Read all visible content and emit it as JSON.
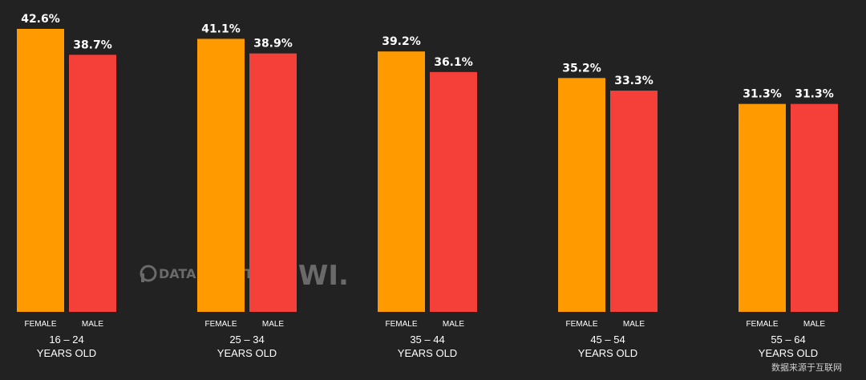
{
  "chart_data": {
    "type": "bar",
    "categories": [
      "16 – 24",
      "25 – 34",
      "35 – 44",
      "45 – 54",
      "55 – 64"
    ],
    "category_suffix": "YEARS OLD",
    "series": [
      {
        "name": "FEMALE",
        "color": "#ff9a00",
        "values": [
          42.6,
          41.1,
          39.2,
          35.2,
          31.3
        ]
      },
      {
        "name": "MALE",
        "color": "#f5403a",
        "values": [
          38.7,
          38.9,
          36.1,
          33.3,
          31.3
        ]
      }
    ],
    "value_suffix": "%",
    "ylim": [
      0,
      42.6
    ],
    "grid": false,
    "legend": "none"
  },
  "watermark": {
    "brand_left": "DATAREPORTAL",
    "brand_right": "GWI."
  },
  "footer": {
    "credit": "数据来源于互联网"
  }
}
